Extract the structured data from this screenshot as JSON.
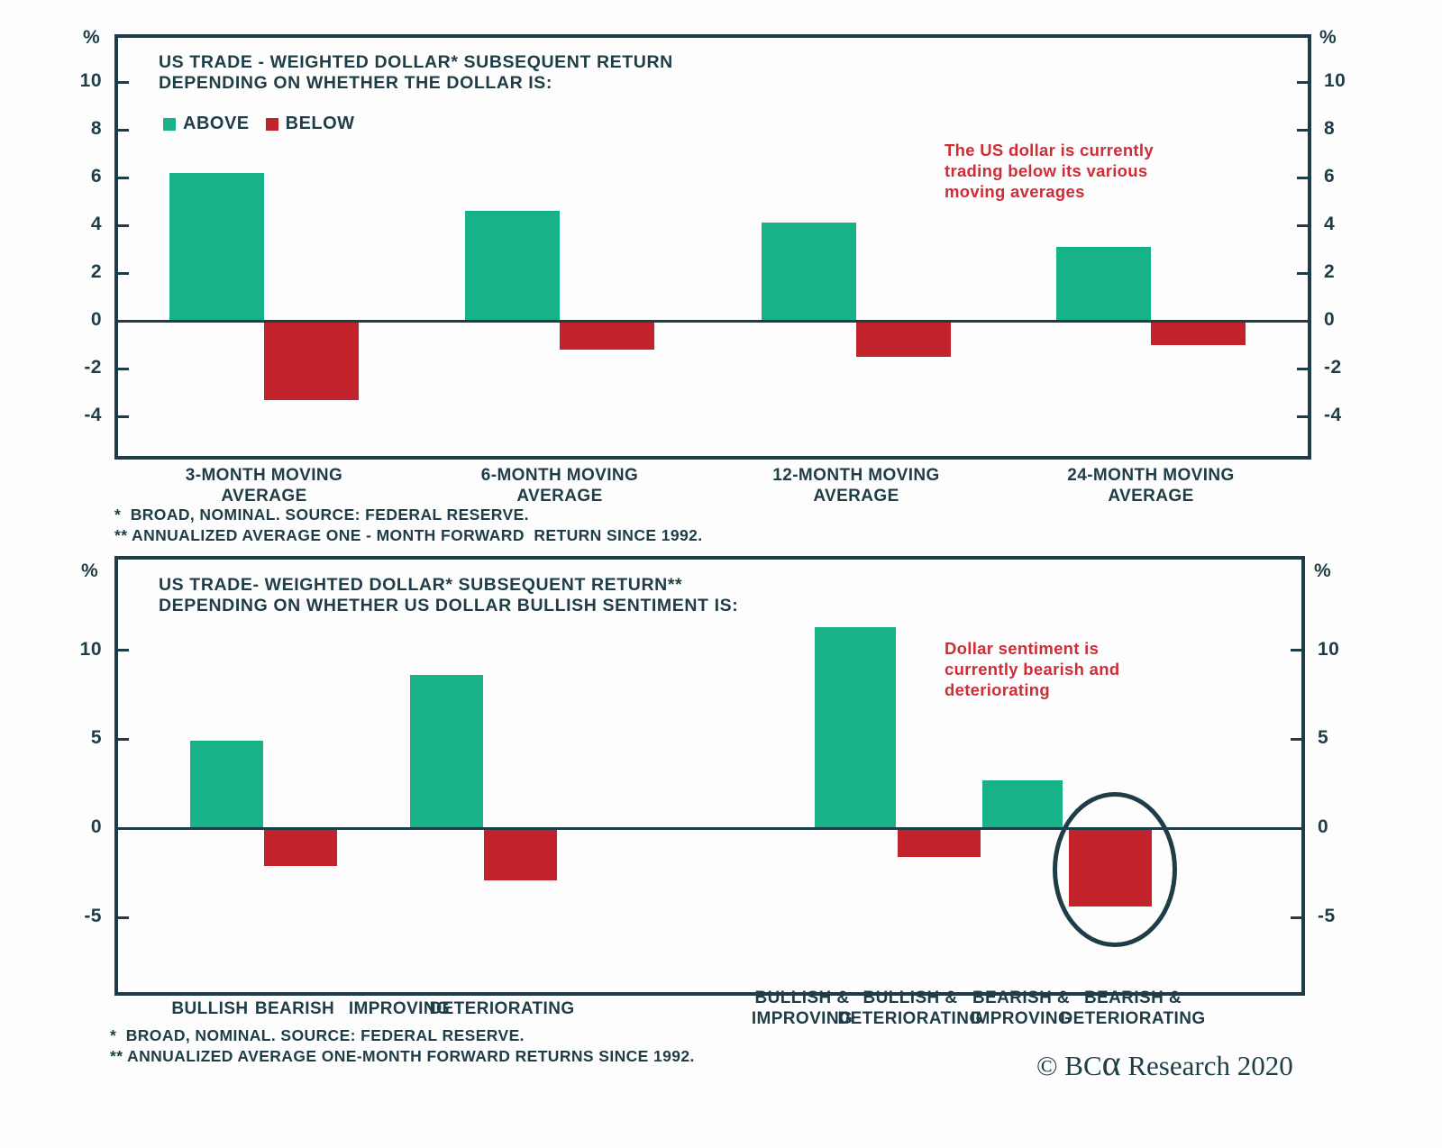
{
  "colors": {
    "green": "#17b287",
    "red": "#c2222c",
    "dark_teal": "#1e3d47",
    "annotation_red": "#cf2d36",
    "background": "#fdfdfd"
  },
  "chart_data": [
    {
      "type": "bar",
      "title": [
        "US TRADE - WEIGHTED DOLLAR* SUBSEQUENT RETURN",
        "DEPENDING ON WHETHER THE DOLLAR IS:"
      ],
      "ylabel": "%",
      "legend": [
        {
          "label": "ABOVE",
          "color": "#17b287"
        },
        {
          "label": "BELOW",
          "color": "#c2222c"
        }
      ],
      "legend_position": "top-left-inside",
      "categories": [
        [
          "3-MONTH MOVING",
          "AVERAGE"
        ],
        [
          "6-MONTH MOVING",
          "AVERAGE"
        ],
        [
          "12-MONTH MOVING",
          "AVERAGE"
        ],
        [
          "24-MONTH MOVING",
          "AVERAGE"
        ]
      ],
      "series": [
        {
          "name": "ABOVE",
          "color": "#17b287",
          "values": [
            6.2,
            4.6,
            4.1,
            3.1
          ]
        },
        {
          "name": "BELOW",
          "color": "#c2222c",
          "values": [
            -3.3,
            -1.2,
            -1.5,
            -1.0
          ]
        }
      ],
      "yticks": [
        10,
        8,
        6,
        4,
        2,
        0,
        -2,
        -4
      ],
      "ylim": [
        -5.8,
        12.0
      ],
      "grid": false,
      "annotation": {
        "lines": [
          "The US dollar is currently",
          "trading below its various",
          "moving averages"
        ],
        "color": "#cf2d36"
      },
      "footnotes": [
        "*  BROAD, NOMINAL. SOURCE: FEDERAL RESERVE.",
        "** ANNUALIZED AVERAGE ONE - MONTH FORWARD  RETURN SINCE 1992."
      ]
    },
    {
      "type": "bar",
      "title": [
        "US TRADE- WEIGHTED DOLLAR* SUBSEQUENT RETURN**",
        "DEPENDING ON WHETHER US DOLLAR BULLISH SENTIMENT IS:"
      ],
      "ylabel": "%",
      "categories": [
        [
          "BULLISH"
        ],
        [
          "BEARISH"
        ],
        [
          "IMPROVING"
        ],
        [
          "DETERIORATING"
        ],
        [
          "BULLISH &",
          "IMPROVING"
        ],
        [
          "BULLISH &",
          "DETERIORATING"
        ],
        [
          "BEARISH &",
          "IMPROVING"
        ],
        [
          "BEARISH &",
          "DETERIORATING"
        ]
      ],
      "values": [
        4.9,
        -2.1,
        8.6,
        -2.9,
        11.3,
        -1.6,
        2.7,
        -4.4
      ],
      "positive_color": "#17b287",
      "negative_color": "#c2222c",
      "yticks": [
        10,
        5,
        0,
        -5
      ],
      "ylim": [
        -9.4,
        15.3
      ],
      "grid": false,
      "annotation": {
        "lines": [
          "Dollar sentiment is",
          "currently bearish and",
          "deteriorating"
        ],
        "color": "#cf2d36"
      },
      "highlight_circle_on": "BEARISH & DETERIORATING",
      "footnotes": [
        "*  BROAD, NOMINAL. SOURCE: FEDERAL RESERVE.",
        "** ANNUALIZED AVERAGE ONE-MONTH FORWARD RETURNS SINCE 1992."
      ]
    }
  ],
  "brand": {
    "prefix": "© BC",
    "alpha": "α",
    "suffix": " Research 2020"
  }
}
